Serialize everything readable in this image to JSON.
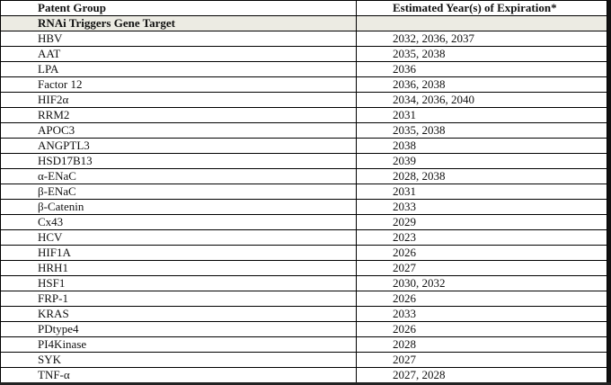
{
  "header": {
    "col1": "Patent Group",
    "col2": "Estimated Year(s) of Expiration*"
  },
  "group": {
    "label": "RNAi Triggers Gene Target"
  },
  "rows": [
    {
      "target": "HBV",
      "years": "2032, 2036, 2037"
    },
    {
      "target": "AAT",
      "years": "2035, 2038"
    },
    {
      "target": "LPA",
      "years": "2036"
    },
    {
      "target": "Factor 12",
      "years": "2036, 2038"
    },
    {
      "target": "HIF2α",
      "years": "2034, 2036, 2040"
    },
    {
      "target": "RRM2",
      "years": "2031"
    },
    {
      "target": "APOC3",
      "years": "2035, 2038"
    },
    {
      "target": "ANGPTL3",
      "years": "2038"
    },
    {
      "target": "HSD17B13",
      "years": "2039"
    },
    {
      "target": "α-ENaC",
      "years": "2028, 2038"
    },
    {
      "target": "β-ENaC",
      "years": "2031"
    },
    {
      "target": "β-Catenin",
      "years": "2033"
    },
    {
      "target": "Cx43",
      "years": "2029"
    },
    {
      "target": "HCV",
      "years": "2023"
    },
    {
      "target": "HIF1A",
      "years": "2026"
    },
    {
      "target": "HRH1",
      "years": "2027"
    },
    {
      "target": "HSF1",
      "years": "2030, 2032"
    },
    {
      "target": "FRP-1",
      "years": "2026"
    },
    {
      "target": "KRAS",
      "years": "2033"
    },
    {
      "target": "PDtype4",
      "years": "2026"
    },
    {
      "target": "PI4Kinase",
      "years": "2028"
    },
    {
      "target": "SYK",
      "years": "2027"
    },
    {
      "target": "TNF-α",
      "years": "2027, 2028"
    }
  ]
}
